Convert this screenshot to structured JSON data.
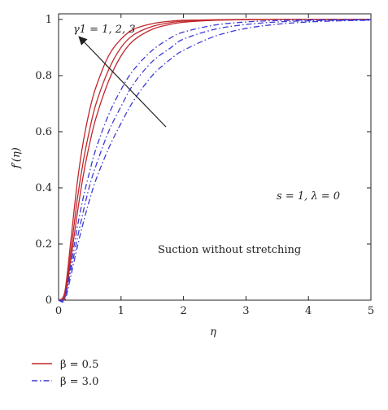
{
  "chart_data": {
    "type": "line",
    "xlabel": "η",
    "ylabel": "f′(η)",
    "xlim": [
      0,
      5
    ],
    "ylim": [
      0,
      1.02
    ],
    "xticks": [
      "0",
      "1",
      "2",
      "3",
      "4",
      "5"
    ],
    "yticks": [
      "0",
      "0.2",
      "0.4",
      "0.6",
      "0.8",
      "1"
    ],
    "grid": false,
    "legend_position": "bottom-left, below plot",
    "annotations": {
      "arrow_label": "γ1 = 1, 2, 3",
      "params": "s = 1, λ = 0",
      "caption": "Suction without stretching"
    },
    "x": [
      0.0,
      0.1,
      0.2,
      0.3,
      0.4,
      0.5,
      0.6,
      0.8,
      1.0,
      1.2,
      1.5,
      1.8,
      2.0,
      2.5,
      3.0,
      3.5,
      4.0,
      4.5,
      5.0
    ],
    "series": [
      {
        "name": "β = 0.5",
        "group": "β = 0.5",
        "color": "#c0282d",
        "dash": "solid",
        "gamma": 1,
        "values": [
          0.0,
          0.03,
          0.22,
          0.42,
          0.57,
          0.68,
          0.76,
          0.87,
          0.93,
          0.965,
          0.985,
          0.994,
          0.997,
          0.999,
          1.0,
          1.0,
          1.0,
          1.0,
          1.0
        ]
      },
      {
        "name": "β = 0.5",
        "group": "β = 0.5",
        "color": "#c0282d",
        "dash": "solid",
        "gamma": 2,
        "values": [
          0.0,
          0.02,
          0.18,
          0.36,
          0.5,
          0.61,
          0.7,
          0.82,
          0.9,
          0.945,
          0.975,
          0.989,
          0.994,
          0.998,
          0.999,
          1.0,
          1.0,
          1.0,
          1.0
        ]
      },
      {
        "name": "β = 0.5",
        "group": "β = 0.5",
        "color": "#c0282d",
        "dash": "solid",
        "gamma": 3,
        "values": [
          0.0,
          0.01,
          0.15,
          0.31,
          0.45,
          0.56,
          0.65,
          0.78,
          0.87,
          0.925,
          0.965,
          0.983,
          0.99,
          0.997,
          0.999,
          1.0,
          1.0,
          1.0,
          1.0
        ]
      },
      {
        "name": "β = 3.0",
        "group": "β = 3.0",
        "color": "#3b3bd6",
        "dash": "dashdot",
        "gamma": 1,
        "values": [
          0.0,
          0.01,
          0.13,
          0.26,
          0.37,
          0.46,
          0.54,
          0.66,
          0.75,
          0.82,
          0.89,
          0.935,
          0.955,
          0.98,
          0.991,
          0.996,
          0.998,
          0.999,
          1.0
        ]
      },
      {
        "name": "β = 3.0",
        "group": "β = 3.0",
        "color": "#3b3bd6",
        "dash": "dashdot",
        "gamma": 2,
        "values": [
          0.0,
          0.01,
          0.11,
          0.22,
          0.32,
          0.41,
          0.48,
          0.6,
          0.69,
          0.77,
          0.85,
          0.9,
          0.93,
          0.965,
          0.982,
          0.991,
          0.995,
          0.997,
          0.998
        ]
      },
      {
        "name": "β = 3.0",
        "group": "β = 3.0",
        "color": "#3b3bd6",
        "dash": "dashdot",
        "gamma": 3,
        "values": [
          0.0,
          0.0,
          0.09,
          0.19,
          0.28,
          0.36,
          0.43,
          0.54,
          0.63,
          0.71,
          0.8,
          0.86,
          0.89,
          0.94,
          0.968,
          0.983,
          0.991,
          0.995,
          0.997
        ]
      }
    ],
    "legend": [
      {
        "label": "β = 0.5",
        "color": "#c0282d",
        "dash": "solid"
      },
      {
        "label": "β = 3.0",
        "color": "#3b3bd6",
        "dash": "dashdot"
      }
    ]
  }
}
